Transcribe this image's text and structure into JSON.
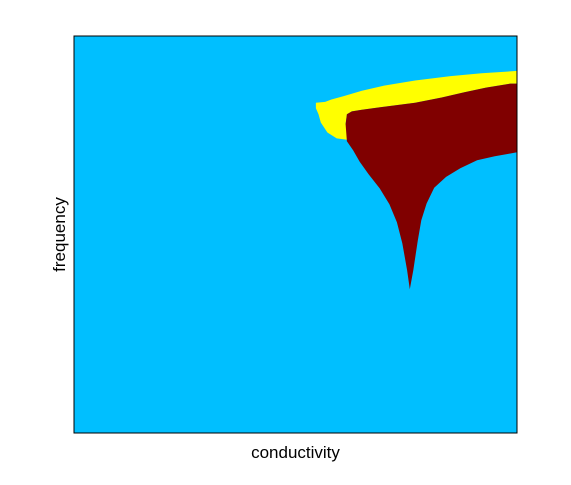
{
  "chart_data": {
    "type": "heatmap",
    "title": "",
    "xlabel": "conductivity",
    "ylabel": "frequency",
    "xlim": [
      0,
      1
    ],
    "ylim": [
      0,
      1
    ],
    "grid": false,
    "show_ticks": false,
    "legend": "none",
    "colors": {
      "background": "#00bfff",
      "fringe": "#ffff00",
      "core": "#800000",
      "frame": "#000000"
    },
    "regions": [
      {
        "name": "yellow-fringe",
        "fill_key": "fringe",
        "polygon": [
          [
            0.546,
            0.832
          ],
          [
            0.567,
            0.834
          ],
          [
            0.581,
            0.84
          ],
          [
            0.608,
            0.848
          ],
          [
            0.65,
            0.862
          ],
          [
            0.7,
            0.875
          ],
          [
            0.77,
            0.888
          ],
          [
            0.85,
            0.899
          ],
          [
            0.92,
            0.906
          ],
          [
            1.0,
            0.912
          ],
          [
            1.0,
            0.88
          ],
          [
            0.985,
            0.88
          ],
          [
            0.93,
            0.87
          ],
          [
            0.88,
            0.858
          ],
          [
            0.83,
            0.845
          ],
          [
            0.77,
            0.832
          ],
          [
            0.7,
            0.822
          ],
          [
            0.65,
            0.814
          ],
          [
            0.627,
            0.81
          ],
          [
            0.616,
            0.803
          ],
          [
            0.613,
            0.778
          ],
          [
            0.624,
            0.762
          ],
          [
            0.644,
            0.737
          ],
          [
            0.651,
            0.73
          ],
          [
            0.627,
            0.737
          ],
          [
            0.593,
            0.742
          ],
          [
            0.572,
            0.757
          ],
          [
            0.557,
            0.782
          ],
          [
            0.552,
            0.803
          ],
          [
            0.546,
            0.818
          ]
        ]
      },
      {
        "name": "maroon-core",
        "fill_key": "core",
        "polygon": [
          [
            0.627,
            0.81
          ],
          [
            0.65,
            0.814
          ],
          [
            0.7,
            0.822
          ],
          [
            0.77,
            0.832
          ],
          [
            0.83,
            0.845
          ],
          [
            0.88,
            0.858
          ],
          [
            0.93,
            0.87
          ],
          [
            0.985,
            0.88
          ],
          [
            1.0,
            0.88
          ],
          [
            1.0,
            0.707
          ],
          [
            0.985,
            0.704
          ],
          [
            0.95,
            0.697
          ],
          [
            0.91,
            0.687
          ],
          [
            0.872,
            0.667
          ],
          [
            0.84,
            0.645
          ],
          [
            0.813,
            0.618
          ],
          [
            0.796,
            0.578
          ],
          [
            0.784,
            0.536
          ],
          [
            0.776,
            0.485
          ],
          [
            0.766,
            0.41
          ],
          [
            0.758,
            0.362
          ],
          [
            0.752,
            0.41
          ],
          [
            0.741,
            0.478
          ],
          [
            0.729,
            0.531
          ],
          [
            0.712,
            0.576
          ],
          [
            0.69,
            0.616
          ],
          [
            0.665,
            0.652
          ],
          [
            0.645,
            0.683
          ],
          [
            0.63,
            0.712
          ],
          [
            0.616,
            0.735
          ],
          [
            0.613,
            0.778
          ],
          [
            0.616,
            0.803
          ]
        ]
      }
    ]
  }
}
